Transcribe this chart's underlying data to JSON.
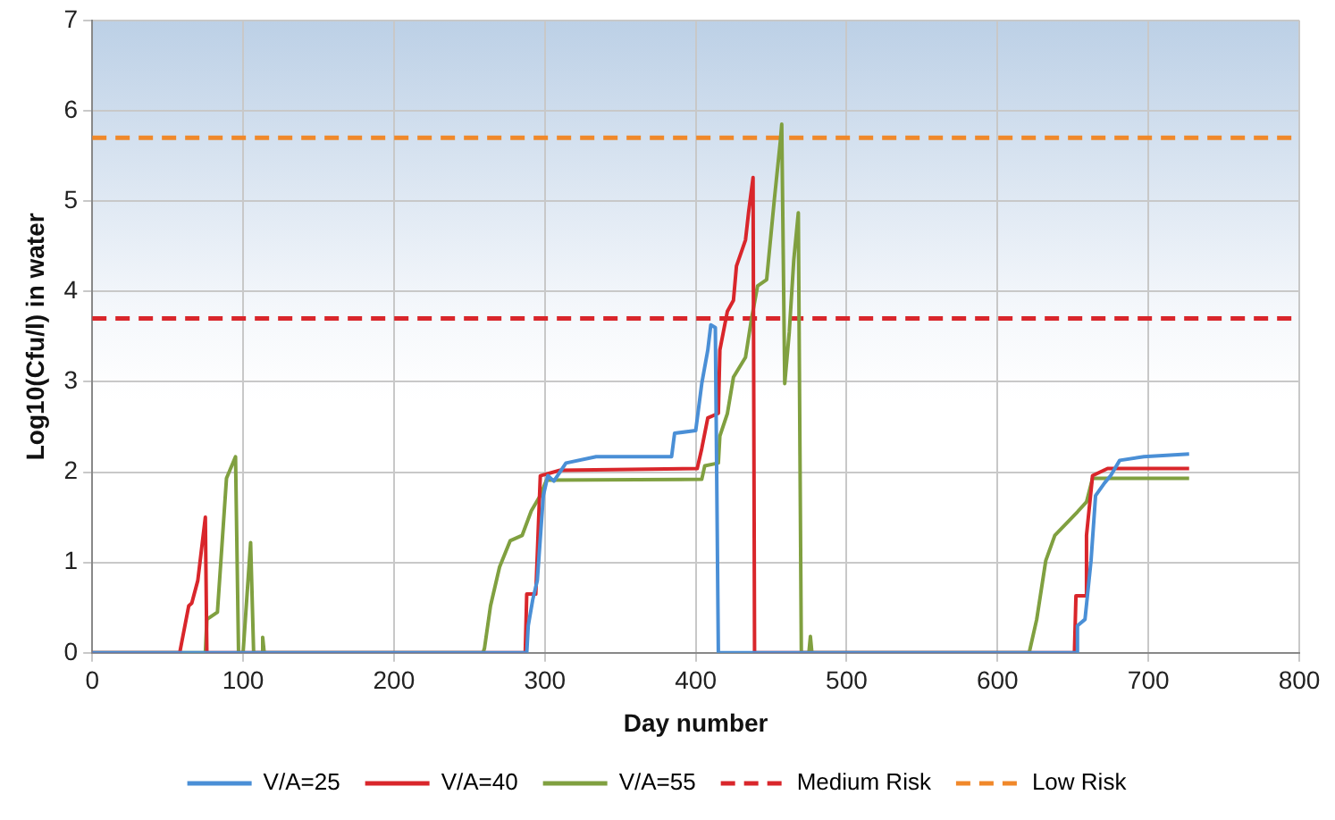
{
  "chart_data": {
    "type": "line",
    "xlabel": "Day number",
    "ylabel": "Log10(Cfu/l) in water",
    "xlim": [
      0,
      800
    ],
    "xticks": [
      0,
      100,
      200,
      300,
      400,
      500,
      600,
      700,
      800
    ],
    "ylim": [
      0,
      7
    ],
    "yticks": [
      0,
      1,
      2,
      3,
      4,
      5,
      6,
      7
    ],
    "grid": true,
    "legend": "bottom",
    "marker": "none",
    "line_style": "solid",
    "series": [
      {
        "name": "V/A=25",
        "color": "#4a8fd6",
        "x": [
          0,
          288,
          289,
          292,
          295,
          299,
          302,
          306,
          314,
          334,
          384,
          386,
          400,
          404,
          408,
          410,
          413,
          415,
          652,
          653,
          658,
          662,
          665,
          671,
          675,
          681,
          697,
          727
        ],
        "values": [
          0,
          0,
          0.3,
          0.59,
          0.8,
          1.74,
          1.96,
          1.9,
          2.1,
          2.17,
          2.17,
          2.43,
          2.46,
          2.98,
          3.35,
          3.63,
          3.6,
          0,
          0,
          0.3,
          0.37,
          1.02,
          1.74,
          1.88,
          1.96,
          2.13,
          2.17,
          2.2
        ]
      },
      {
        "name": "V/A=40",
        "color": "#d9262b",
        "x": [
          0,
          58,
          64,
          66,
          70,
          75,
          76,
          287,
          288,
          294,
          297,
          310,
          401,
          404,
          408,
          415,
          416,
          421,
          425,
          427,
          433,
          435,
          438,
          439,
          651,
          652,
          658,
          659,
          663,
          673,
          727
        ],
        "values": [
          0,
          0,
          0.52,
          0.55,
          0.8,
          1.5,
          0,
          0,
          0.65,
          0.65,
          1.96,
          2.02,
          2.04,
          2.26,
          2.6,
          2.65,
          3.35,
          3.78,
          3.9,
          4.28,
          4.57,
          4.87,
          5.26,
          0,
          0,
          0.63,
          0.63,
          1.3,
          1.96,
          2.04,
          2.04
        ]
      },
      {
        "name": "V/A=55",
        "color": "#80a040",
        "x": [
          0,
          75,
          76,
          83,
          89,
          95,
          97,
          100,
          105,
          107,
          112,
          113,
          114,
          259,
          260,
          264,
          270,
          277,
          285,
          291,
          297,
          301,
          404,
          406,
          415,
          416,
          421,
          425,
          433,
          437,
          441,
          447,
          452,
          456,
          457,
          459,
          462,
          465,
          468,
          470,
          475,
          476,
          477,
          621,
          626,
          632,
          638,
          653,
          659,
          663,
          727
        ],
        "values": [
          0,
          0,
          0.37,
          0.45,
          1.93,
          2.17,
          0,
          0,
          1.22,
          0,
          0,
          0.17,
          0,
          0,
          0.05,
          0.52,
          0.95,
          1.24,
          1.3,
          1.57,
          1.74,
          1.91,
          1.92,
          2.07,
          2.1,
          2.4,
          2.65,
          3.05,
          3.27,
          3.7,
          4.06,
          4.13,
          5.0,
          5.65,
          5.85,
          2.98,
          3.55,
          4.35,
          4.87,
          0,
          0,
          0.18,
          0,
          0,
          0.37,
          1.02,
          1.3,
          1.56,
          1.67,
          1.93,
          1.93
        ]
      }
    ],
    "ref_lines": [
      {
        "axis": "y",
        "value": 3.7,
        "label": "Medium Risk",
        "color": "#d9262b",
        "line_style": "dashed"
      },
      {
        "axis": "y",
        "value": 5.7,
        "label": "Low Risk",
        "color": "#f0882a",
        "line_style": "dashed"
      }
    ]
  }
}
